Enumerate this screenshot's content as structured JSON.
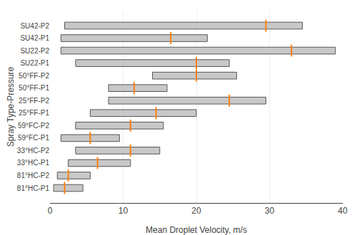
{
  "chart_data": {
    "type": "bar",
    "orientation": "horizontal",
    "xlabel": "Mean Droplet Velocity, m/s",
    "ylabel": "Spray Type-Pressure",
    "categories": [
      "81°HC-P1",
      "81°HC-P2",
      "33°HC-P1",
      "33°HC-P2",
      "59°FC-P1",
      "59°FC-P2",
      "25°FF-P1",
      "25°FF-P2",
      "50°FF-P1",
      "50°FF-P2",
      "SU22-P1",
      "SU22-P2",
      "SU42-P1",
      "SU42-P2"
    ],
    "bar_left": [
      0.5,
      1.0,
      2.5,
      3.5,
      1.5,
      3.5,
      5.5,
      8.0,
      8.0,
      14.0,
      3.5,
      1.5,
      1.5,
      2.0
    ],
    "bar_right": [
      4.5,
      5.5,
      11.0,
      15.0,
      9.5,
      15.5,
      20.0,
      29.5,
      16.0,
      25.5,
      24.5,
      39.0,
      21.5,
      34.5
    ],
    "centerline": [
      2.0,
      2.5,
      6.5,
      11.0,
      5.5,
      11.0,
      14.5,
      24.5,
      11.5,
      20.0,
      20.0,
      33.0,
      16.5,
      29.5
    ],
    "color": "#c8c8c8",
    "marker": "line-ns-open",
    "xlim": [
      0,
      40
    ],
    "xticks": [
      0,
      10,
      20,
      30,
      40
    ],
    "grid": true
  }
}
